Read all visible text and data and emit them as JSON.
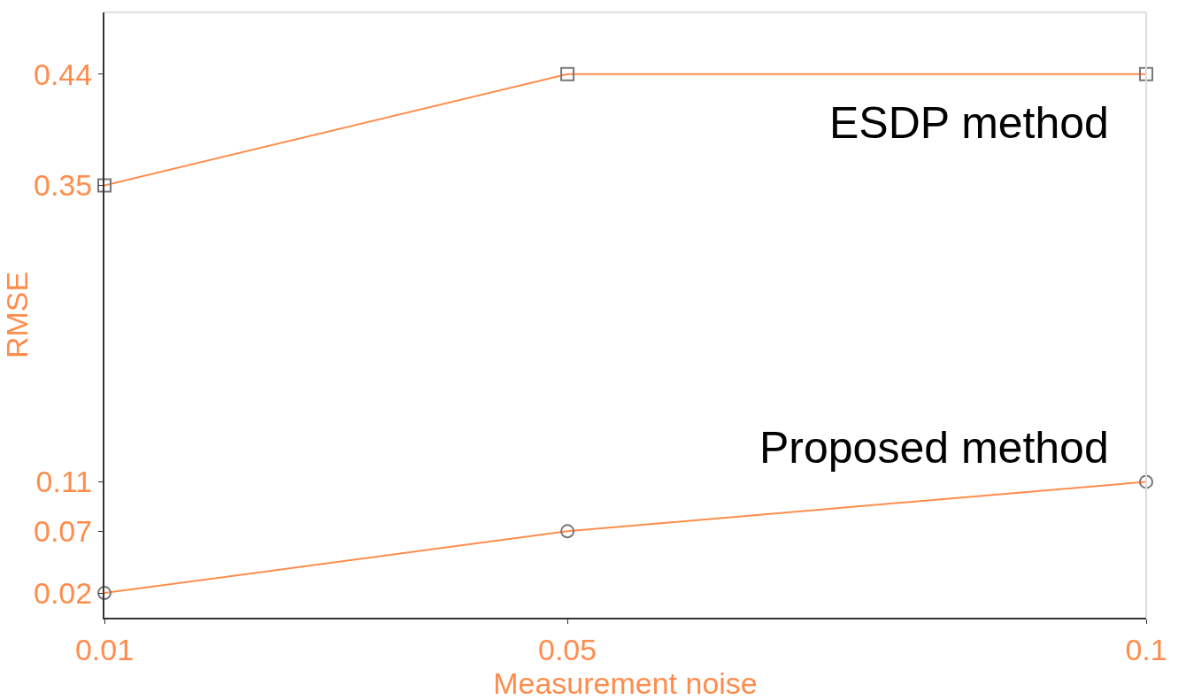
{
  "chart_data": {
    "type": "line",
    "xlabel": "Measurement noise",
    "ylabel": "RMSE",
    "x": [
      0.01,
      0.05,
      0.1
    ],
    "series": [
      {
        "name": "ESDP method",
        "color": "#ff8c4c",
        "values": [
          0.35,
          0.44,
          0.44
        ],
        "marker": "square"
      },
      {
        "name": "Proposed method",
        "color": "#ff8c4c",
        "values": [
          0.02,
          0.07,
          0.11
        ],
        "marker": "circle"
      }
    ],
    "xlim": [
      0.01,
      0.1
    ],
    "xticks": [
      0.01,
      0.05,
      0.1
    ],
    "ylim": [
      0,
      0.49
    ],
    "yticks": [
      0.02,
      0.07,
      0.11,
      0.35,
      0.44
    ],
    "legend": false,
    "line_style": "solid"
  }
}
